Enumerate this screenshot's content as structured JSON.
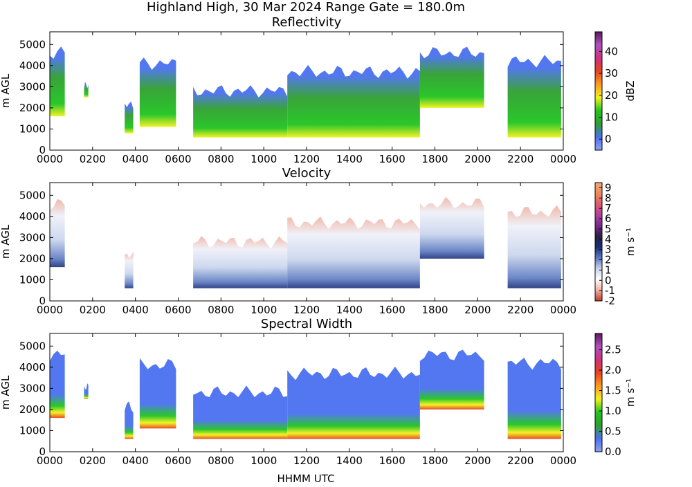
{
  "figure": {
    "suptitle": "Highland High, 30 Mar 2024 Range Gate = 180.0m",
    "xlabel": "HHMM UTC"
  },
  "chart_data": [
    {
      "type": "heatmap",
      "title": "Reflectivity",
      "ylabel": "m AGL",
      "colorbar_label": "dBZ",
      "x_ticks": [
        "0000",
        "0200",
        "0400",
        "0600",
        "0800",
        "1000",
        "1200",
        "1400",
        "1600",
        "1800",
        "2000",
        "2200",
        "0000"
      ],
      "x_range_hours": [
        0,
        24
      ],
      "y_ticks": [
        0,
        1000,
        2000,
        3000,
        4000,
        5000
      ],
      "y_range": [
        0,
        5600
      ],
      "colorbar_ticks": [
        0,
        10,
        20,
        30,
        40
      ],
      "colorbar_range": [
        -5,
        49
      ],
      "colors": [
        "#8da2f5",
        "#4a70f0",
        "#2e9f2e",
        "#1fc41f",
        "#f2f21a",
        "#ff9a1f",
        "#e8421e",
        "#d03080",
        "#b050c0",
        "#5a1a5a"
      ],
      "data_extent": [
        {
          "start_hour": 0.0,
          "end_hour": 0.7,
          "base_m": 1600,
          "top_m": 4800
        },
        {
          "start_hour": 1.6,
          "end_hour": 1.8,
          "base_m": 2500,
          "top_m": 3200
        },
        {
          "start_hour": 3.5,
          "end_hour": 3.9,
          "base_m": 800,
          "top_m": 2300
        },
        {
          "start_hour": 4.2,
          "end_hour": 5.9,
          "base_m": 1100,
          "top_m": 4300
        },
        {
          "start_hour": 6.7,
          "end_hour": 11.1,
          "base_m": 600,
          "top_m": 3000
        },
        {
          "start_hour": 11.1,
          "end_hour": 17.3,
          "base_m": 600,
          "top_m": 3900
        },
        {
          "start_hour": 17.3,
          "end_hour": 20.3,
          "base_m": 2000,
          "top_m": 4800
        },
        {
          "start_hour": 21.4,
          "end_hour": 23.9,
          "base_m": 600,
          "top_m": 4400
        }
      ]
    },
    {
      "type": "heatmap",
      "title": "Velocity",
      "ylabel": "m AGL",
      "colorbar_label": "m s⁻¹",
      "x_ticks": [
        "0000",
        "0200",
        "0400",
        "0600",
        "0800",
        "1000",
        "1200",
        "1400",
        "1600",
        "1800",
        "2000",
        "2200",
        "0000"
      ],
      "x_range_hours": [
        0,
        24
      ],
      "y_ticks": [
        0,
        1000,
        2000,
        3000,
        4000,
        5000
      ],
      "y_range": [
        0,
        5600
      ],
      "colorbar_ticks": [
        -2,
        -1,
        0,
        1,
        2,
        3,
        4,
        5,
        6,
        7,
        8,
        9
      ],
      "colorbar_range": [
        -2,
        9.5
      ],
      "colors": [
        "#c0392b",
        "#f0b0a0",
        "#ffffff",
        "#c8d4ec",
        "#5a78c0",
        "#1a2e78",
        "#2a2040",
        "#7a2a8a",
        "#b040a0",
        "#e05a6a",
        "#f08a5a",
        "#f4a878"
      ],
      "data_extent": [
        {
          "start_hour": 0.0,
          "end_hour": 0.7,
          "base_m": 1600,
          "top_m": 4800
        },
        {
          "start_hour": 3.5,
          "end_hour": 3.9,
          "base_m": 600,
          "top_m": 2300
        },
        {
          "start_hour": 6.7,
          "end_hour": 11.1,
          "base_m": 600,
          "top_m": 3000
        },
        {
          "start_hour": 11.1,
          "end_hour": 17.3,
          "base_m": 600,
          "top_m": 3900
        },
        {
          "start_hour": 17.3,
          "end_hour": 20.3,
          "base_m": 2000,
          "top_m": 4800
        },
        {
          "start_hour": 21.4,
          "end_hour": 23.9,
          "base_m": 600,
          "top_m": 4400
        }
      ]
    },
    {
      "type": "heatmap",
      "title": "Spectral Width",
      "ylabel": "m AGL",
      "colorbar_label": "m s⁻¹",
      "x_ticks": [
        "0000",
        "0200",
        "0400",
        "0600",
        "0800",
        "1000",
        "1200",
        "1400",
        "1600",
        "1800",
        "2000",
        "2200",
        "0000"
      ],
      "x_range_hours": [
        0,
        24
      ],
      "y_ticks": [
        0,
        1000,
        2000,
        3000,
        4000,
        5000
      ],
      "y_range": [
        0,
        5600
      ],
      "colorbar_ticks": [
        0.0,
        0.5,
        1.0,
        1.5,
        2.0,
        2.5
      ],
      "colorbar_tick_labels": [
        "0.0",
        "0.5",
        "1.0",
        "1.5",
        "2.0",
        "2.5"
      ],
      "colorbar_range": [
        0,
        2.9
      ],
      "colors": [
        "#8da2f5",
        "#4a70f0",
        "#2e9f2e",
        "#1fc41f",
        "#f2f21a",
        "#ff9a1f",
        "#e8421e",
        "#d03080",
        "#b050c0",
        "#5a1a5a"
      ],
      "data_extent": [
        {
          "start_hour": 0.0,
          "end_hour": 0.7,
          "base_m": 1600,
          "top_m": 4800
        },
        {
          "start_hour": 1.6,
          "end_hour": 1.8,
          "base_m": 2500,
          "top_m": 3200
        },
        {
          "start_hour": 3.5,
          "end_hour": 3.9,
          "base_m": 600,
          "top_m": 2300
        },
        {
          "start_hour": 4.2,
          "end_hour": 5.9,
          "base_m": 1100,
          "top_m": 4300
        },
        {
          "start_hour": 6.7,
          "end_hour": 11.1,
          "base_m": 600,
          "top_m": 3000
        },
        {
          "start_hour": 11.1,
          "end_hour": 17.3,
          "base_m": 600,
          "top_m": 3900
        },
        {
          "start_hour": 17.3,
          "end_hour": 20.3,
          "base_m": 2000,
          "top_m": 4800
        },
        {
          "start_hour": 21.4,
          "end_hour": 23.9,
          "base_m": 600,
          "top_m": 4400
        }
      ]
    }
  ]
}
